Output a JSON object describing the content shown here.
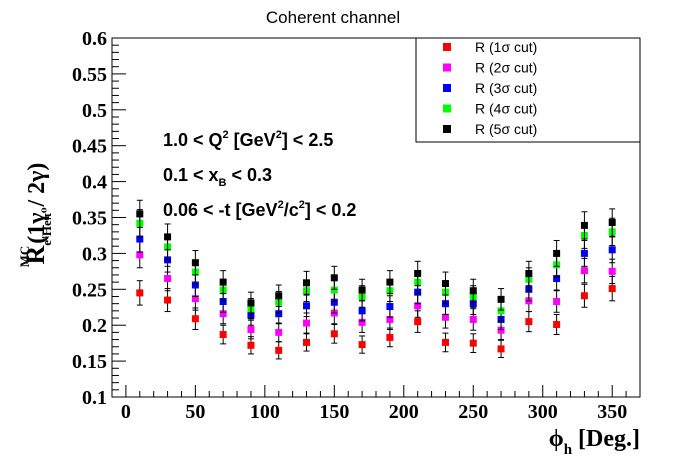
{
  "chart_data": {
    "type": "scatter",
    "title": "Coherent channel",
    "xlabel": {
      "main": "ϕ",
      "sub": "h",
      "suffix": " [Deg.]"
    },
    "ylabel": {
      "main": "R",
      "sup": "MC",
      "sub": "e⁴Heπ⁰",
      "suffix": "(1γ / 2γ)"
    },
    "xlim": [
      -10,
      370
    ],
    "ylim": [
      0.1,
      0.6
    ],
    "xticks": [
      "0",
      "50",
      "100",
      "150",
      "200",
      "250",
      "300",
      "350"
    ],
    "yticks": [
      "0.1",
      "0.15",
      "0.2",
      "0.25",
      "0.3",
      "0.35",
      "0.4",
      "0.45",
      "0.5",
      "0.55",
      "0.6"
    ],
    "grid": false,
    "legend_position": "top-right",
    "annotations": [
      {
        "a": "1.0 < Q",
        "sup": "2",
        "b": " [GeV",
        "sup2": "2",
        "c": "] < 2.5"
      },
      {
        "a": "0.1 < x",
        "sub": "B",
        "b": " < 0.3"
      },
      {
        "a": "0.06 < -t [GeV",
        "sup": "2",
        "b": "/c",
        "sup2": "2",
        "c": "] < 0.2"
      }
    ],
    "x": [
      10,
      30,
      50,
      70,
      90,
      110,
      130,
      150,
      170,
      190,
      210,
      230,
      250,
      270,
      290,
      310,
      330,
      350
    ],
    "series": [
      {
        "name": "R (1σ cut)",
        "color": "#ff0000",
        "values": [
          0.245,
          0.235,
          0.209,
          0.187,
          0.172,
          0.165,
          0.176,
          0.188,
          0.173,
          0.183,
          0.205,
          0.176,
          0.175,
          0.167,
          0.205,
          0.201,
          0.241,
          0.251
        ],
        "errors": [
          0.017,
          0.016,
          0.015,
          0.013,
          0.012,
          0.012,
          0.012,
          0.013,
          0.012,
          0.013,
          0.015,
          0.013,
          0.013,
          0.012,
          0.014,
          0.014,
          0.016,
          0.017
        ]
      },
      {
        "name": "R (2σ cut)",
        "color": "#ff00ff",
        "values": [
          0.298,
          0.265,
          0.237,
          0.216,
          0.194,
          0.19,
          0.203,
          0.217,
          0.204,
          0.208,
          0.227,
          0.211,
          0.208,
          0.193,
          0.234,
          0.233,
          0.276,
          0.275
        ],
        "errors": [
          0.018,
          0.017,
          0.016,
          0.014,
          0.013,
          0.013,
          0.014,
          0.015,
          0.014,
          0.014,
          0.016,
          0.015,
          0.015,
          0.013,
          0.015,
          0.015,
          0.017,
          0.017
        ]
      },
      {
        "name": "R (3σ cut)",
        "color": "#0000ff",
        "values": [
          0.32,
          0.291,
          0.256,
          0.233,
          0.214,
          0.216,
          0.227,
          0.232,
          0.22,
          0.226,
          0.246,
          0.23,
          0.23,
          0.208,
          0.25,
          0.265,
          0.3,
          0.305
        ],
        "errors": [
          0.018,
          0.017,
          0.016,
          0.015,
          0.014,
          0.014,
          0.015,
          0.015,
          0.014,
          0.015,
          0.016,
          0.015,
          0.015,
          0.014,
          0.016,
          0.016,
          0.018,
          0.018
        ]
      },
      {
        "name": "R (4σ cut)",
        "color": "#00ff00",
        "values": [
          0.342,
          0.309,
          0.274,
          0.249,
          0.223,
          0.232,
          0.248,
          0.249,
          0.24,
          0.248,
          0.26,
          0.246,
          0.24,
          0.22,
          0.264,
          0.284,
          0.325,
          0.33
        ],
        "errors": [
          0.019,
          0.018,
          0.017,
          0.015,
          0.014,
          0.015,
          0.015,
          0.016,
          0.015,
          0.015,
          0.016,
          0.016,
          0.015,
          0.014,
          0.016,
          0.017,
          0.018,
          0.019
        ]
      },
      {
        "name": "R (5σ cut)",
        "color": "#000000",
        "values": [
          0.355,
          0.323,
          0.287,
          0.26,
          0.231,
          0.241,
          0.259,
          0.266,
          0.249,
          0.26,
          0.272,
          0.258,
          0.248,
          0.236,
          0.272,
          0.3,
          0.339,
          0.343
        ],
        "errors": [
          0.019,
          0.018,
          0.017,
          0.016,
          0.015,
          0.015,
          0.016,
          0.016,
          0.015,
          0.016,
          0.017,
          0.016,
          0.016,
          0.015,
          0.017,
          0.018,
          0.019,
          0.019
        ]
      }
    ]
  }
}
